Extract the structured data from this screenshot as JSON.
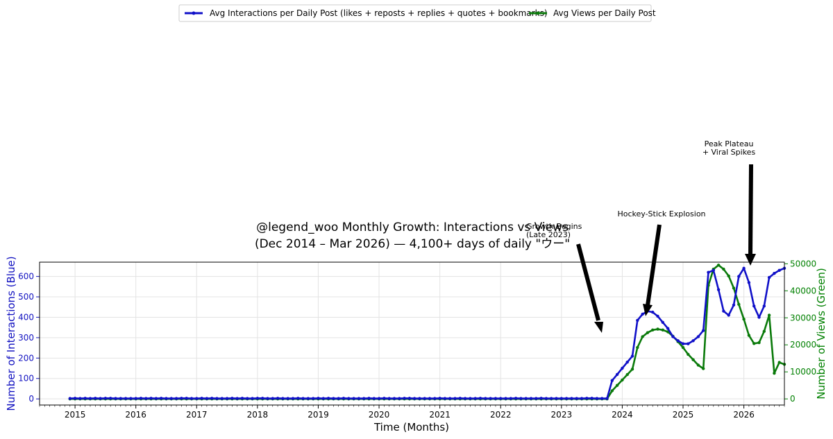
{
  "chart_data": {
    "type": "line",
    "title": "@legend_woo Monthly Growth: Interactions vs Views",
    "subtitle": "(Dec 2014 – Mar 2026) — 4,100+ days of daily \"ウー\"",
    "xlabel": "Time (Months)",
    "ylabel_left": "Number of Interactions (Blue)",
    "ylabel_right": "Number of Views (Green)",
    "xlim": [
      "2014-06",
      "2026-09"
    ],
    "ylim_left": [
      -30,
      670
    ],
    "ylim_right": [
      -2265,
      50600
    ],
    "x_ticks": [
      "2015",
      "2016",
      "2017",
      "2018",
      "2019",
      "2020",
      "2021",
      "2022",
      "2023",
      "2024",
      "2025",
      "2026"
    ],
    "y_ticks_left": [
      0,
      100,
      200,
      300,
      400,
      500,
      600
    ],
    "y_ticks_right": [
      0,
      10000,
      20000,
      30000,
      40000,
      50000
    ],
    "y_ticks_right_labels": [
      "0",
      "10000",
      "20000",
      "30000",
      "40000",
      "50000"
    ],
    "grid": true,
    "legend_position": "top-center",
    "colors": {
      "interactions": "#1010c8",
      "views": "#0a7a0a"
    },
    "series": [
      {
        "name": "Avg Interactions per Daily Post (likes + reposts + replies + quotes + bookmarks)",
        "axis": "left",
        "start": "2014-12",
        "values": [
          2,
          3,
          2,
          3,
          2,
          3,
          2,
          3,
          3,
          2,
          2,
          2,
          2,
          2,
          3,
          2,
          3,
          2,
          3,
          2,
          2,
          2,
          3,
          3,
          2,
          2,
          3,
          2,
          3,
          2,
          2,
          2,
          3,
          2,
          3,
          2,
          2,
          3,
          3,
          2,
          2,
          3,
          2,
          2,
          2,
          3,
          2,
          2,
          2,
          3,
          2,
          3,
          2,
          2,
          3,
          2,
          2,
          2,
          2,
          3,
          2,
          2,
          3,
          2,
          2,
          2,
          3,
          3,
          2,
          2,
          2,
          2,
          2,
          3,
          2,
          2,
          2,
          3,
          2,
          2,
          2,
          3,
          2,
          2,
          2,
          2,
          2,
          2,
          3,
          2,
          2,
          2,
          2,
          3,
          2,
          2,
          2,
          2,
          2,
          2,
          2,
          2,
          3,
          3,
          2,
          2,
          2,
          90,
          120,
          150,
          180,
          210,
          385,
          415,
          430,
          425,
          405,
          375,
          345,
          305,
          285,
          270,
          270,
          285,
          305,
          335,
          620,
          630,
          535,
          430,
          410,
          460,
          600,
          640,
          570,
          455,
          400,
          455,
          595,
          615,
          630,
          640
        ]
      },
      {
        "name": "Avg Views per Daily Post",
        "axis": "right",
        "start": "2014-12",
        "values": [
          0,
          0,
          0,
          0,
          0,
          0,
          0,
          0,
          0,
          0,
          0,
          0,
          0,
          0,
          0,
          0,
          0,
          0,
          0,
          0,
          0,
          0,
          0,
          0,
          0,
          0,
          0,
          0,
          0,
          0,
          0,
          0,
          0,
          0,
          0,
          0,
          0,
          0,
          0,
          0,
          0,
          0,
          0,
          0,
          0,
          0,
          0,
          0,
          0,
          0,
          0,
          0,
          0,
          0,
          0,
          0,
          0,
          0,
          0,
          0,
          0,
          0,
          0,
          0,
          0,
          0,
          0,
          0,
          0,
          0,
          0,
          0,
          0,
          0,
          0,
          0,
          0,
          0,
          0,
          0,
          0,
          0,
          0,
          0,
          0,
          0,
          0,
          0,
          0,
          0,
          0,
          0,
          0,
          0,
          0,
          0,
          0,
          0,
          0,
          0,
          0,
          0,
          0,
          0,
          0,
          0,
          0,
          3000,
          5000,
          7000,
          9000,
          11000,
          19000,
          23000,
          24500,
          25500,
          25800,
          25500,
          24800,
          23200,
          21200,
          19000,
          16500,
          14500,
          12500,
          11200,
          42000,
          48000,
          49500,
          48000,
          45500,
          41000,
          35000,
          29500,
          23500,
          20500,
          20800,
          25000,
          31000,
          9500,
          13500,
          12800
        ]
      }
    ],
    "annotations": [
      {
        "text_lines": [
          "Growth Begins",
          "(Late 2023)"
        ],
        "target": "2023-10"
      },
      {
        "text_lines": [
          "Hockey-Stick Explosion"
        ],
        "target": "2024-06"
      },
      {
        "text_lines": [
          "Peak Plateau",
          "+ Viral Spikes"
        ],
        "target": "2026-03"
      }
    ]
  }
}
